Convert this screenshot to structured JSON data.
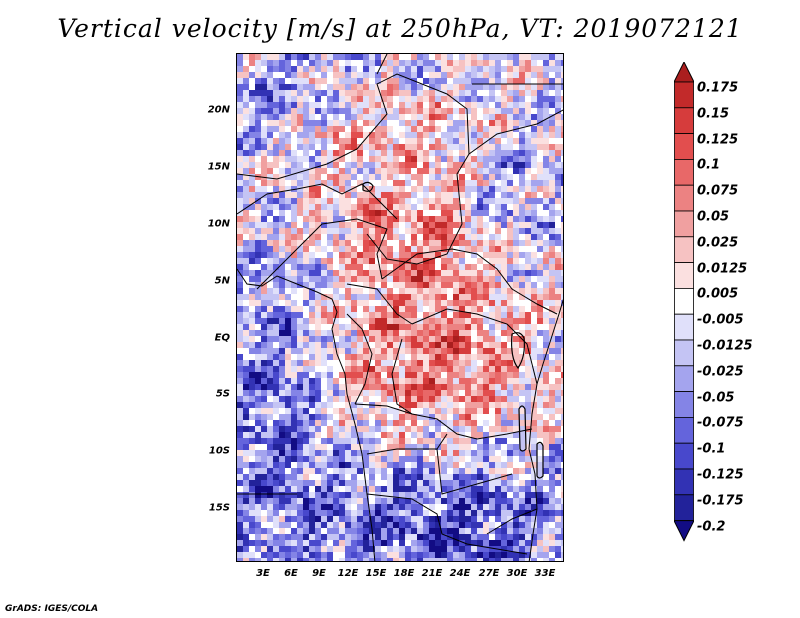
{
  "title": "Vertical velocity [m/s] at 250hPa, VT: 2019072121",
  "credit": "GrADS: IGES/COLA",
  "map": {
    "lat_labels": [
      "20N",
      "15N",
      "10N",
      "5N",
      "EQ",
      "5S",
      "10S",
      "15S"
    ],
    "lon_labels": [
      "3E",
      "6E",
      "9E",
      "12E",
      "15E",
      "18E",
      "21E",
      "24E",
      "27E",
      "30E",
      "33E"
    ]
  },
  "colorbar": {
    "labels": [
      "0.175",
      "0.15",
      "0.125",
      "0.1",
      "0.075",
      "0.05",
      "0.025",
      "0.0125",
      "0.005",
      "-0.005",
      "-0.0125",
      "-0.025",
      "-0.05",
      "-0.075",
      "-0.1",
      "-0.125",
      "-0.175",
      "-0.2"
    ],
    "colors": [
      "#aa1e1e",
      "#c22a2a",
      "#d63c3c",
      "#e24e4e",
      "#e86868",
      "#ec8282",
      "#f0a0a0",
      "#f6c2c2",
      "#fbe0e0",
      "#ffffff",
      "#e0e0fa",
      "#c4c4f4",
      "#a4a4ee",
      "#8484e6",
      "#6464dc",
      "#4848cc",
      "#3232b4",
      "#22229a",
      "#120c84"
    ]
  }
}
